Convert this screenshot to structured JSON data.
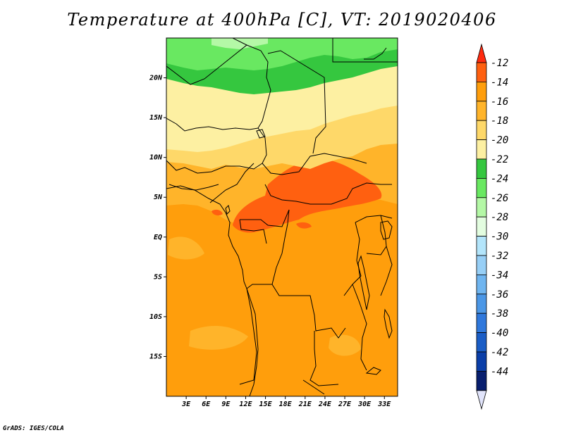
{
  "title": "Temperature at 400hPa [C], VT: 2019020406",
  "credit": "GrADS: IGES/COLA",
  "map": {
    "lon_range": [
      0,
      35
    ],
    "lat_range": [
      -20,
      25
    ],
    "lat_ticks": [
      {
        "value": 20,
        "label": "20N"
      },
      {
        "value": 15,
        "label": "15N"
      },
      {
        "value": 10,
        "label": "10N"
      },
      {
        "value": 5,
        "label": "5N"
      },
      {
        "value": 0,
        "label": "EQ"
      },
      {
        "value": -5,
        "label": "5S"
      },
      {
        "value": -10,
        "label": "10S"
      },
      {
        "value": -15,
        "label": "15S"
      }
    ],
    "lon_ticks": [
      {
        "value": 3,
        "label": "3E"
      },
      {
        "value": 6,
        "label": "6E"
      },
      {
        "value": 9,
        "label": "9E"
      },
      {
        "value": 12,
        "label": "12E"
      },
      {
        "value": 15,
        "label": "15E"
      },
      {
        "value": 18,
        "label": "18E"
      },
      {
        "value": 21,
        "label": "21E"
      },
      {
        "value": 24,
        "label": "24E"
      },
      {
        "value": 27,
        "label": "27E"
      },
      {
        "value": 30,
        "label": "30E"
      },
      {
        "value": 33,
        "label": "33E"
      }
    ]
  },
  "colorbar": {
    "bins": [
      {
        "label": "-12",
        "color": "#ff6010"
      },
      {
        "label": "-14",
        "color": "#ff9e0c"
      },
      {
        "label": "-16",
        "color": "#ffb42a"
      },
      {
        "label": "-18",
        "color": "#fed869"
      },
      {
        "label": "-20",
        "color": "#fdf0a2"
      },
      {
        "label": "-22",
        "color": "#35c73f"
      },
      {
        "label": "-24",
        "color": "#69e861"
      },
      {
        "label": "-26",
        "color": "#b4f8a6"
      },
      {
        "label": "-28",
        "color": "#e3fde0"
      },
      {
        "label": "-30",
        "color": "#b3e5fb"
      },
      {
        "label": "-32",
        "color": "#97cff6"
      },
      {
        "label": "-34",
        "color": "#6fb5f0"
      },
      {
        "label": "-36",
        "color": "#4b97e6"
      },
      {
        "label": "-38",
        "color": "#2f78dc"
      },
      {
        "label": "-40",
        "color": "#1a5dc6"
      },
      {
        "label": "-42",
        "color": "#0a3ea8"
      },
      {
        "label": "-44",
        "color": "#071e6e"
      }
    ],
    "high_color": "#ff2b10",
    "low_color": "#e1e4fb"
  }
}
